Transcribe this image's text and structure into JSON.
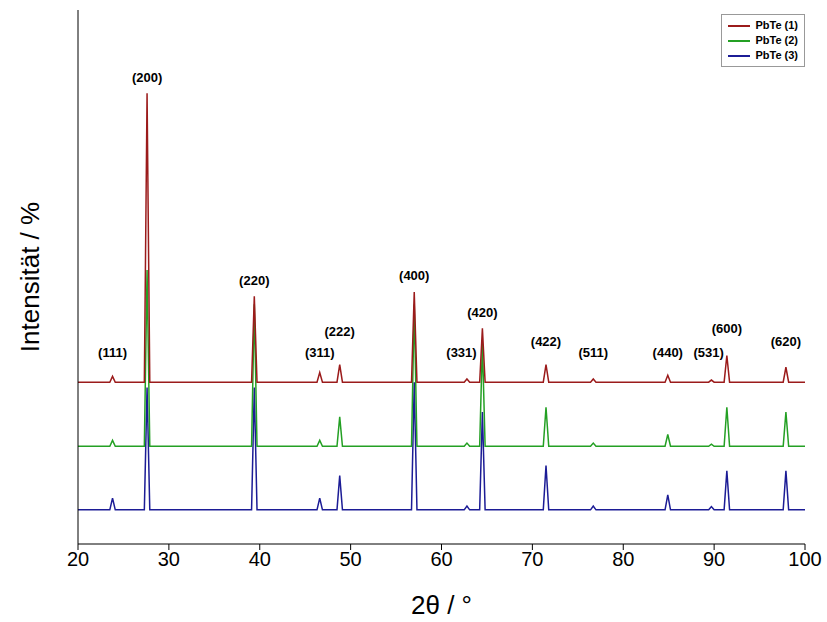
{
  "chart_data": {
    "type": "line",
    "x_label": "2θ / °",
    "y_label": "Intensität / %",
    "xlim": [
      20,
      100
    ],
    "xticks": [
      20,
      30,
      40,
      50,
      60,
      70,
      80,
      90,
      100
    ],
    "ylim": [
      0,
      100
    ],
    "tick_labels": "x",
    "legend": "upper right",
    "x": [
      20,
      23.5,
      23.8,
      24.1,
      27.3,
      27.6,
      27.9,
      39.1,
      39.4,
      39.7,
      46.3,
      46.6,
      46.9,
      48.5,
      48.8,
      49.1,
      56.7,
      57,
      57.3,
      62.5,
      62.8,
      63.1,
      64.2,
      64.5,
      64.8,
      71.2,
      71.5,
      71.8,
      76.4,
      76.7,
      77,
      84.6,
      84.9,
      85.2,
      89.4,
      89.7,
      90,
      91.1,
      91.4,
      91.7,
      97.6,
      97.9,
      98.2,
      100
    ],
    "series": [
      {
        "name": "PbTe (1)",
        "color": "#9b1b1b",
        "values": [
          30.3,
          30.3,
          31.4,
          30.3,
          30.3,
          84.4,
          30.3,
          30.3,
          46.4,
          30.3,
          30.3,
          32.1,
          30.3,
          30.3,
          33.6,
          30.3,
          30.3,
          47.2,
          30.3,
          30.3,
          30.9,
          30.3,
          30.3,
          40.4,
          30.3,
          30.3,
          33.6,
          30.3,
          30.3,
          30.9,
          30.3,
          30.3,
          31.6,
          30.3,
          30.3,
          30.7,
          30.3,
          30.3,
          35.3,
          30.3,
          30.3,
          33.1,
          30.3,
          30.3
        ]
      },
      {
        "name": "PbTe (2)",
        "color": "#24a024",
        "values": [
          18.3,
          18.3,
          19.4,
          18.3,
          18.3,
          51.3,
          18.3,
          18.3,
          44.9,
          18.3,
          18.3,
          19.4,
          18.3,
          18.3,
          23.8,
          18.3,
          18.3,
          44.9,
          18.3,
          18.3,
          18.9,
          18.3,
          18.3,
          37.6,
          18.3,
          18.3,
          25.6,
          18.3,
          18.3,
          18.9,
          18.3,
          18.3,
          20.5,
          18.3,
          18.3,
          18.7,
          18.3,
          18.3,
          25.6,
          18.3,
          18.3,
          24.7,
          18.3,
          18.3
        ]
      },
      {
        "name": "PbTe (3)",
        "color": "#1c1c96",
        "values": [
          6.4,
          6.4,
          8.6,
          6.4,
          6.4,
          29.3,
          6.4,
          6.4,
          29.3,
          6.4,
          6.4,
          8.6,
          6.4,
          6.4,
          12.8,
          6.4,
          6.4,
          30.3,
          6.4,
          6.4,
          7.1,
          6.4,
          6.4,
          24.7,
          6.4,
          6.4,
          14.7,
          6.4,
          6.4,
          7.1,
          6.4,
          6.4,
          9.2,
          6.4,
          6.4,
          7,
          6.4,
          6.4,
          13.7,
          6.4,
          6.4,
          13.7,
          6.4,
          6.4
        ]
      }
    ],
    "annotations": [
      {
        "text": "(111)",
        "x": 23.8,
        "y": 35
      },
      {
        "text": "(200)",
        "x": 27.6,
        "y": 86.5
      },
      {
        "text": "(220)",
        "x": 39.4,
        "y": 48.5
      },
      {
        "text": "(311)",
        "x": 46.6,
        "y": 35
      },
      {
        "text": "(222)",
        "x": 48.8,
        "y": 39
      },
      {
        "text": "(400)",
        "x": 57,
        "y": 49.5
      },
      {
        "text": "(331)",
        "x": 62.2,
        "y": 35
      },
      {
        "text": "(420)",
        "x": 64.5,
        "y": 42.5
      },
      {
        "text": "(422)",
        "x": 71.5,
        "y": 37
      },
      {
        "text": "(511)",
        "x": 76.7,
        "y": 35
      },
      {
        "text": "(440)",
        "x": 84.9,
        "y": 35
      },
      {
        "text": "(531)",
        "x": 89.4,
        "y": 35
      },
      {
        "text": "(600)",
        "x": 91.4,
        "y": 39.5
      },
      {
        "text": "(620)",
        "x": 97.9,
        "y": 37
      }
    ]
  }
}
